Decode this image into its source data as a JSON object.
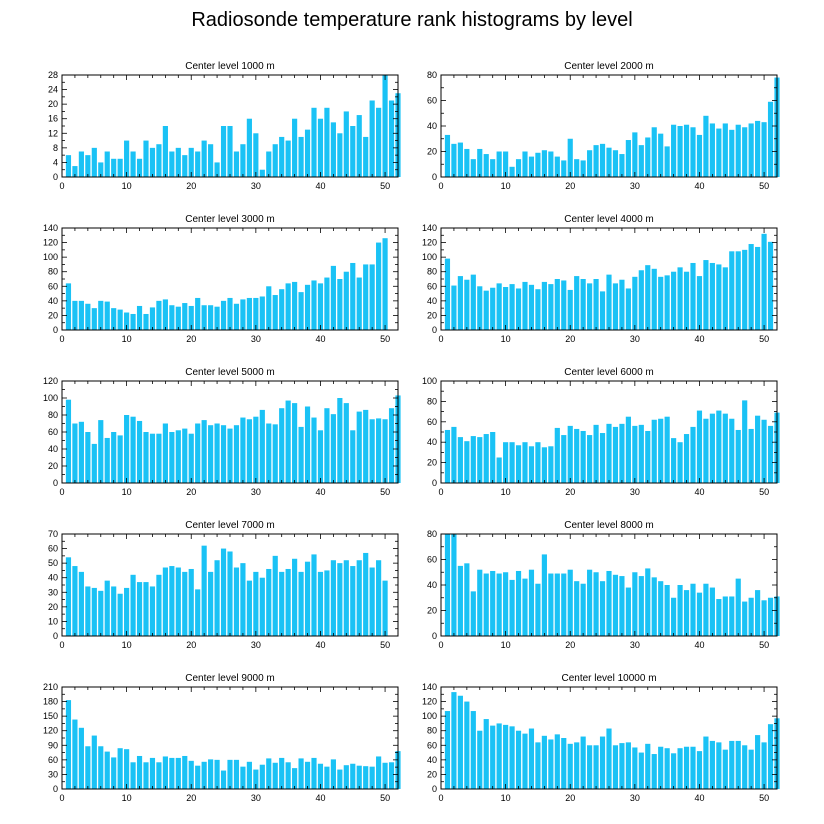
{
  "figure": {
    "title": "Radiosonde temperature rank histograms by level",
    "bar_color": "#1ac2f5"
  },
  "chart_data": [
    {
      "type": "bar",
      "title": "Center level 1000 m",
      "xlim": [
        0,
        52
      ],
      "ylim": [
        0,
        28
      ],
      "xticks": [
        0,
        10,
        20,
        30,
        40,
        50
      ],
      "yticks": [
        0,
        4,
        8,
        12,
        16,
        20,
        24,
        28
      ],
      "values": [
        6,
        3,
        7,
        6,
        8,
        4,
        7,
        5,
        5,
        10,
        7,
        5,
        10,
        8,
        9,
        14,
        7,
        8,
        6,
        8,
        7,
        10,
        9,
        4,
        14,
        14,
        7,
        9,
        16,
        12,
        2,
        7,
        9,
        11,
        10,
        16,
        11,
        13,
        19,
        16,
        19,
        15,
        12,
        18,
        14,
        17,
        11,
        21,
        19,
        28,
        21,
        23
      ]
    },
    {
      "type": "bar",
      "title": "Center level 2000 m",
      "xlim": [
        0,
        52
      ],
      "ylim": [
        0,
        80
      ],
      "xticks": [
        0,
        10,
        20,
        30,
        40,
        50
      ],
      "yticks": [
        0,
        20,
        40,
        60,
        80
      ],
      "values": [
        33,
        26,
        27,
        22,
        14,
        22,
        18,
        14,
        20,
        20,
        8,
        14,
        20,
        16,
        19,
        21,
        20,
        16,
        13,
        30,
        14,
        13,
        21,
        25,
        26,
        23,
        21,
        18,
        29,
        35,
        25,
        31,
        39,
        34,
        24,
        41,
        40,
        41,
        39,
        33,
        48,
        42,
        38,
        42,
        37,
        41,
        39,
        42,
        44,
        43,
        59,
        78
      ]
    },
    {
      "type": "bar",
      "title": "Center level 3000 m",
      "xlim": [
        0,
        52
      ],
      "ylim": [
        0,
        140
      ],
      "xticks": [
        0,
        10,
        20,
        30,
        40,
        50
      ],
      "yticks": [
        0,
        20,
        40,
        60,
        80,
        100,
        120,
        140
      ],
      "values": [
        64,
        40,
        40,
        36,
        30,
        40,
        39,
        30,
        28,
        24,
        22,
        33,
        22,
        31,
        40,
        42,
        34,
        32,
        37,
        33,
        44,
        34,
        34,
        32,
        40,
        44,
        36,
        42,
        44,
        44,
        46,
        60,
        48,
        56,
        64,
        66,
        52,
        62,
        68,
        64,
        72,
        88,
        70,
        80,
        92,
        72,
        90,
        90,
        120,
        126
      ]
    },
    {
      "type": "bar",
      "title": "Center level 4000 m",
      "xlim": [
        0,
        52
      ],
      "ylim": [
        0,
        140
      ],
      "xticks": [
        0,
        10,
        20,
        30,
        40,
        50
      ],
      "yticks": [
        0,
        20,
        40,
        60,
        80,
        100,
        120,
        140
      ],
      "values": [
        98,
        61,
        74,
        69,
        76,
        60,
        54,
        58,
        64,
        59,
        63,
        57,
        66,
        62,
        56,
        66,
        63,
        70,
        68,
        55,
        74,
        70,
        64,
        70,
        53,
        76,
        64,
        69,
        57,
        73,
        82,
        89,
        84,
        73,
        75,
        80,
        86,
        80,
        92,
        74,
        96,
        92,
        90,
        86,
        108,
        108,
        110,
        118,
        114,
        132,
        121
      ]
    },
    {
      "type": "bar",
      "title": "Center level 5000 m",
      "xlim": [
        0,
        52
      ],
      "ylim": [
        0,
        120
      ],
      "xticks": [
        0,
        10,
        20,
        30,
        40,
        50
      ],
      "yticks": [
        0,
        20,
        40,
        60,
        80,
        100,
        120
      ],
      "values": [
        98,
        70,
        72,
        60,
        46,
        74,
        53,
        60,
        56,
        80,
        78,
        73,
        60,
        58,
        58,
        70,
        60,
        62,
        64,
        58,
        70,
        74,
        68,
        70,
        68,
        64,
        68,
        77,
        75,
        78,
        86,
        70,
        69,
        88,
        97,
        94,
        66,
        90,
        77,
        62,
        88,
        81,
        100,
        94,
        62,
        84,
        86,
        75,
        76,
        75,
        88,
        103
      ]
    },
    {
      "type": "bar",
      "title": "Center level 6000 m",
      "xlim": [
        0,
        52
      ],
      "ylim": [
        0,
        100
      ],
      "xticks": [
        0,
        10,
        20,
        30,
        40,
        50
      ],
      "yticks": [
        0,
        20,
        40,
        60,
        80,
        100
      ],
      "values": [
        52,
        55,
        45,
        41,
        46,
        45,
        48,
        50,
        25,
        40,
        40,
        37,
        40,
        36,
        40,
        35,
        36,
        54,
        47,
        56,
        53,
        51,
        47,
        57,
        49,
        58,
        55,
        58,
        65,
        56,
        57,
        51,
        62,
        63,
        65,
        44,
        40,
        48,
        55,
        71,
        63,
        68,
        71,
        68,
        63,
        52,
        81,
        53,
        66,
        62,
        56,
        69
      ]
    },
    {
      "type": "bar",
      "title": "Center level 7000 m",
      "xlim": [
        0,
        52
      ],
      "ylim": [
        0,
        70
      ],
      "xticks": [
        0,
        10,
        20,
        30,
        40,
        50
      ],
      "yticks": [
        0,
        10,
        20,
        30,
        40,
        50,
        60,
        70
      ],
      "values": [
        54,
        48,
        44,
        34,
        33,
        31,
        38,
        34,
        29,
        33,
        42,
        37,
        37,
        34,
        42,
        47,
        48,
        47,
        44,
        46,
        32,
        62,
        44,
        52,
        60,
        58,
        47,
        50,
        38,
        44,
        40,
        46,
        55,
        44,
        46,
        53,
        44,
        51,
        56,
        44,
        45,
        52,
        50,
        52,
        48,
        52,
        57,
        47,
        52,
        38
      ]
    },
    {
      "type": "bar",
      "title": "Center level 8000 m",
      "xlim": [
        0,
        52
      ],
      "ylim": [
        0,
        80
      ],
      "xticks": [
        0,
        10,
        20,
        30,
        40,
        50
      ],
      "yticks": [
        0,
        20,
        40,
        60,
        80
      ],
      "values": [
        82,
        80,
        55,
        57,
        35,
        52,
        49,
        51,
        49,
        50,
        44,
        51,
        45,
        52,
        41,
        64,
        49,
        49,
        49,
        52,
        43,
        41,
        52,
        50,
        43,
        51,
        48,
        47,
        38,
        50,
        47,
        53,
        46,
        43,
        40,
        30,
        40,
        36,
        41,
        34,
        41,
        38,
        29,
        31,
        31,
        45,
        27,
        30,
        36,
        28,
        30,
        31
      ]
    },
    {
      "type": "bar",
      "title": "Center level 9000 m",
      "xlim": [
        0,
        52
      ],
      "ylim": [
        0,
        210
      ],
      "xticks": [
        0,
        10,
        20,
        30,
        40,
        50
      ],
      "yticks": [
        0,
        30,
        60,
        90,
        120,
        150,
        180,
        210
      ],
      "values": [
        183,
        143,
        126,
        88,
        110,
        88,
        77,
        65,
        84,
        82,
        55,
        68,
        55,
        64,
        55,
        67,
        64,
        64,
        68,
        58,
        48,
        56,
        61,
        60,
        38,
        60,
        60,
        46,
        56,
        40,
        50,
        63,
        54,
        64,
        55,
        43,
        63,
        56,
        64,
        52,
        46,
        61,
        40,
        49,
        52,
        48,
        47,
        46,
        67,
        54,
        55,
        78
      ]
    },
    {
      "type": "bar",
      "title": "Center level 10000 m",
      "xlim": [
        0,
        52
      ],
      "ylim": [
        0,
        140
      ],
      "xticks": [
        0,
        10,
        20,
        30,
        40,
        50
      ],
      "yticks": [
        0,
        20,
        40,
        60,
        80,
        100,
        120,
        140
      ],
      "values": [
        107,
        133,
        128,
        120,
        107,
        80,
        96,
        87,
        90,
        88,
        86,
        80,
        76,
        83,
        64,
        73,
        68,
        75,
        70,
        62,
        64,
        72,
        60,
        60,
        72,
        83,
        60,
        63,
        64,
        57,
        50,
        62,
        48,
        58,
        56,
        49,
        56,
        58,
        58,
        52,
        72,
        66,
        64,
        54,
        66,
        66,
        60,
        54,
        74,
        64,
        89,
        97
      ]
    }
  ]
}
